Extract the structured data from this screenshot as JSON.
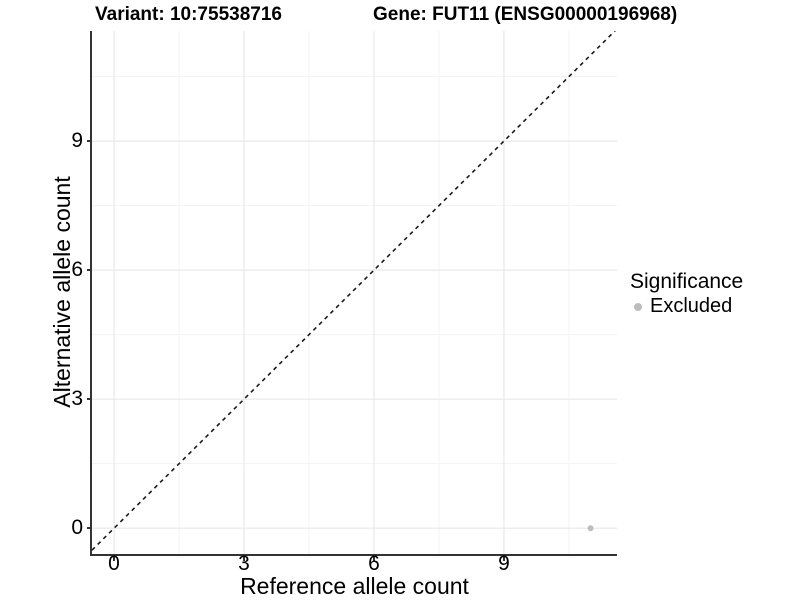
{
  "figure": {
    "titles": {
      "variant": "Variant: 10:75538716",
      "gene": "Gene: FUT11 (ENSG00000196968)"
    }
  },
  "axes": {
    "x": {
      "label": "Reference allele count",
      "ticks": [
        "0",
        "3",
        "6",
        "9"
      ]
    },
    "y": {
      "label": "Alternative allele count",
      "ticks": [
        "0",
        "3",
        "6",
        "9"
      ]
    }
  },
  "legend": {
    "title": "Significance",
    "items": [
      {
        "label": "Excluded",
        "color": "#bdbdbd"
      }
    ]
  },
  "colors": {
    "background": "#ffffff",
    "text": "#000000",
    "axis_line": "#333333",
    "tick": "#333333",
    "grid_major": "#e8e8e8",
    "grid_minor": "#f3f3f3",
    "identity_line": "#1a1a1a",
    "excluded_point": "#bdbdbd"
  },
  "chart_data": {
    "type": "scatter",
    "title": "Variant: 10:75538716 — Gene: FUT11 (ENSG00000196968)",
    "xlabel": "Reference allele count",
    "ylabel": "Alternative allele count",
    "x_ticks": [
      0,
      3,
      6,
      9
    ],
    "y_ticks": [
      0,
      3,
      6,
      9
    ],
    "x_minor": [
      1.5,
      4.5,
      7.5,
      10.5
    ],
    "y_minor": [
      1.5,
      4.5,
      7.5,
      10.5
    ],
    "xlim": [
      0,
      11
    ],
    "ylim": [
      0,
      11
    ],
    "x_range": [
      -0.51,
      11.61
    ],
    "y_range": [
      -0.6,
      11.56
    ],
    "grid": "on",
    "legend_position": "right",
    "identity_line": {
      "slope": 1,
      "intercept": 0,
      "style": "dashed",
      "color": "#1a1a1a",
      "width": 1.6
    },
    "point_radius": 3,
    "series": [
      {
        "name": "Excluded",
        "color": "#bdbdbd",
        "points": [
          {
            "x": 11,
            "y": 0
          }
        ]
      }
    ]
  }
}
